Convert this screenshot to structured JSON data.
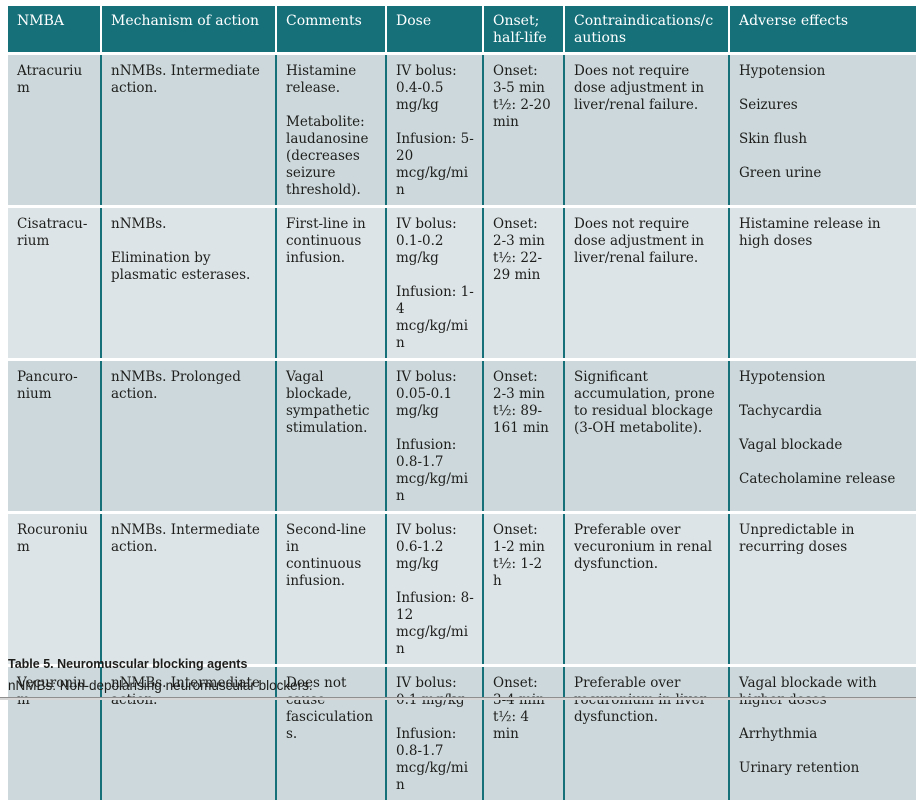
{
  "colors": {
    "header_teal": "#15707a",
    "row_dark": "#ccd8db",
    "row_light": "#dce4e7",
    "text": "#1e1e1c",
    "header_text": "#ffffff"
  },
  "table": {
    "columns": [
      "NMBA",
      "Mechanism of action",
      "Comments",
      "Dose",
      "Onset; half-life",
      "Contraindications/cau­tions",
      "Adverse effects"
    ],
    "rows": [
      {
        "name": [
          "Atracurium"
        ],
        "mechanism": [
          "nNMBs. Intermediate action."
        ],
        "comments": [
          "Histamine release.",
          "Metabolite: laudanosine (de­creases seizure threshold)."
        ],
        "dose": [
          "IV bolus: 0.4-0.5 mg/kg",
          "Infusion: 5-20 mcg/kg/min"
        ],
        "onset": [
          "Onset: 3-5 min",
          "t½: 2-20 min"
        ],
        "contraindications": [
          "Does not require dose adjustment in liver/renal failure."
        ],
        "adverse": [
          "Hypotension",
          "Seizures",
          "Skin flush",
          "Green urine"
        ]
      },
      {
        "name": [
          "Cisatracu­rium"
        ],
        "mechanism": [
          "nNMBs.",
          "Elimination by plasmatic esterases."
        ],
        "comments": [
          "First-line in continuous infusion."
        ],
        "dose": [
          "IV bolus: 0.1-0.2 mg/kg",
          "Infusion: 1-4 mcg/kg/min"
        ],
        "onset": [
          "Onset: 2-3 min",
          "t½: 22-29 min"
        ],
        "contraindications": [
          "Does not require dose adjustment in liver/renal failure."
        ],
        "adverse": [
          "Histamine release in high doses"
        ]
      },
      {
        "name": [
          "Pancuro­nium"
        ],
        "mechanism": [
          "nNMBs. Prolonged action."
        ],
        "comments": [
          "Vagal blockade, sympathetic stimulation."
        ],
        "dose": [
          "IV bolus: 0.05-0.1 mg/kg",
          "Infusion: 0.8-1.7 mcg/kg/min"
        ],
        "onset": [
          "Onset: 2-3 min",
          "t½: 89-161 min"
        ],
        "contraindications": [
          "Significant accumulation, prone to residual blocka­ge (3-OH metabolite)."
        ],
        "adverse": [
          "Hypotension",
          "Tachycardia",
          "Vagal blockade",
          "Catecholamine release"
        ]
      },
      {
        "name": [
          "Rocuronium"
        ],
        "mechanism": [
          "nNMBs. Intermediate action."
        ],
        "comments": [
          "Second-line in continuous infusion."
        ],
        "dose": [
          "IV bolus: 0.6-1.2 mg/kg",
          "Infusion: 8-12 mcg/kg/min"
        ],
        "onset": [
          "Onset: 1-2 min",
          "t½: 1-2 h"
        ],
        "contraindications": [
          "Preferable over vecuro­nium in renal dysfunc­tion."
        ],
        "adverse": [
          "Unpredictable in recurring doses"
        ]
      },
      {
        "name": [
          "Vecuronium"
        ],
        "mechanism": [
          "nNMBs. Intermediate action."
        ],
        "comments": [
          "Does not cause fasciculations."
        ],
        "dose": [
          "IV bolus: 0.1 mg/kg",
          "Infusion: 0.8-1.7 mcg/kg/min"
        ],
        "onset": [
          "Onset: 3-4 min",
          "t½: 4 min"
        ],
        "contraindications": [
          "Preferable over rocuro­nium in liver dysfunc­tion."
        ],
        "adverse": [
          "Vagal blockade with higher doses",
          "Arrhythmia",
          "Urinary retention"
        ]
      }
    ]
  },
  "footer": {
    "caption": "Table 5. Neuromuscular blocking agents",
    "note": "nNMBs: Non-depolarising neuromuscular blockers."
  }
}
